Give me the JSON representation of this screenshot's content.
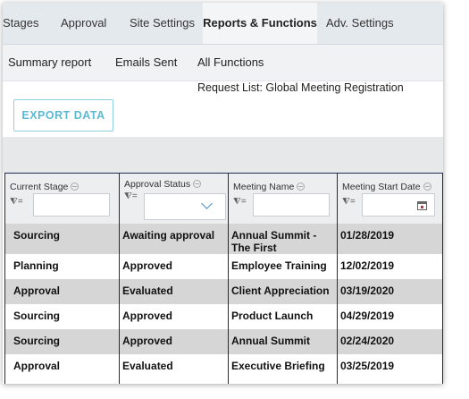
{
  "tabs": [
    {
      "label": "Stages",
      "active": false
    },
    {
      "label": "Approval",
      "active": false
    },
    {
      "label": "Site Settings",
      "active": false
    },
    {
      "label": "Reports & Functions",
      "active": true
    },
    {
      "label": "Adv. Settings",
      "active": false
    }
  ],
  "subnav": [
    "Summary report",
    "Emails Sent",
    "All Functions"
  ],
  "request_list_title": "Request List: Global Meeting Registration",
  "export_button": "EXPORT DATA",
  "accent_color": "#5bbad2",
  "grid_border_color": "#1b2c55",
  "columns": [
    {
      "label": "Current Stage",
      "filter": "text-filter"
    },
    {
      "label": "Approval Status",
      "filter": "dropdown-filter"
    },
    {
      "label": "Meeting Name",
      "filter": "text-filter"
    },
    {
      "label": "Meeting Start Date",
      "filter": "date-filter"
    }
  ],
  "filter_symbol": "=",
  "rows": [
    [
      "Sourcing",
      "Awaiting approval",
      "Annual Summit - The First",
      "01/28/2019"
    ],
    [
      "Planning",
      "Approved",
      "Employee Training",
      "12/02/2019"
    ],
    [
      "Approval",
      "Evaluated",
      "Client Appreciation",
      "03/19/2020"
    ],
    [
      "Sourcing",
      "Approved",
      "Product Launch",
      "04/29/2019"
    ],
    [
      "Sourcing",
      "Approved",
      "Annual Summit",
      "02/24/2020"
    ],
    [
      "Approval",
      "Evaluated",
      "Executive Briefing",
      "03/25/2019"
    ]
  ]
}
